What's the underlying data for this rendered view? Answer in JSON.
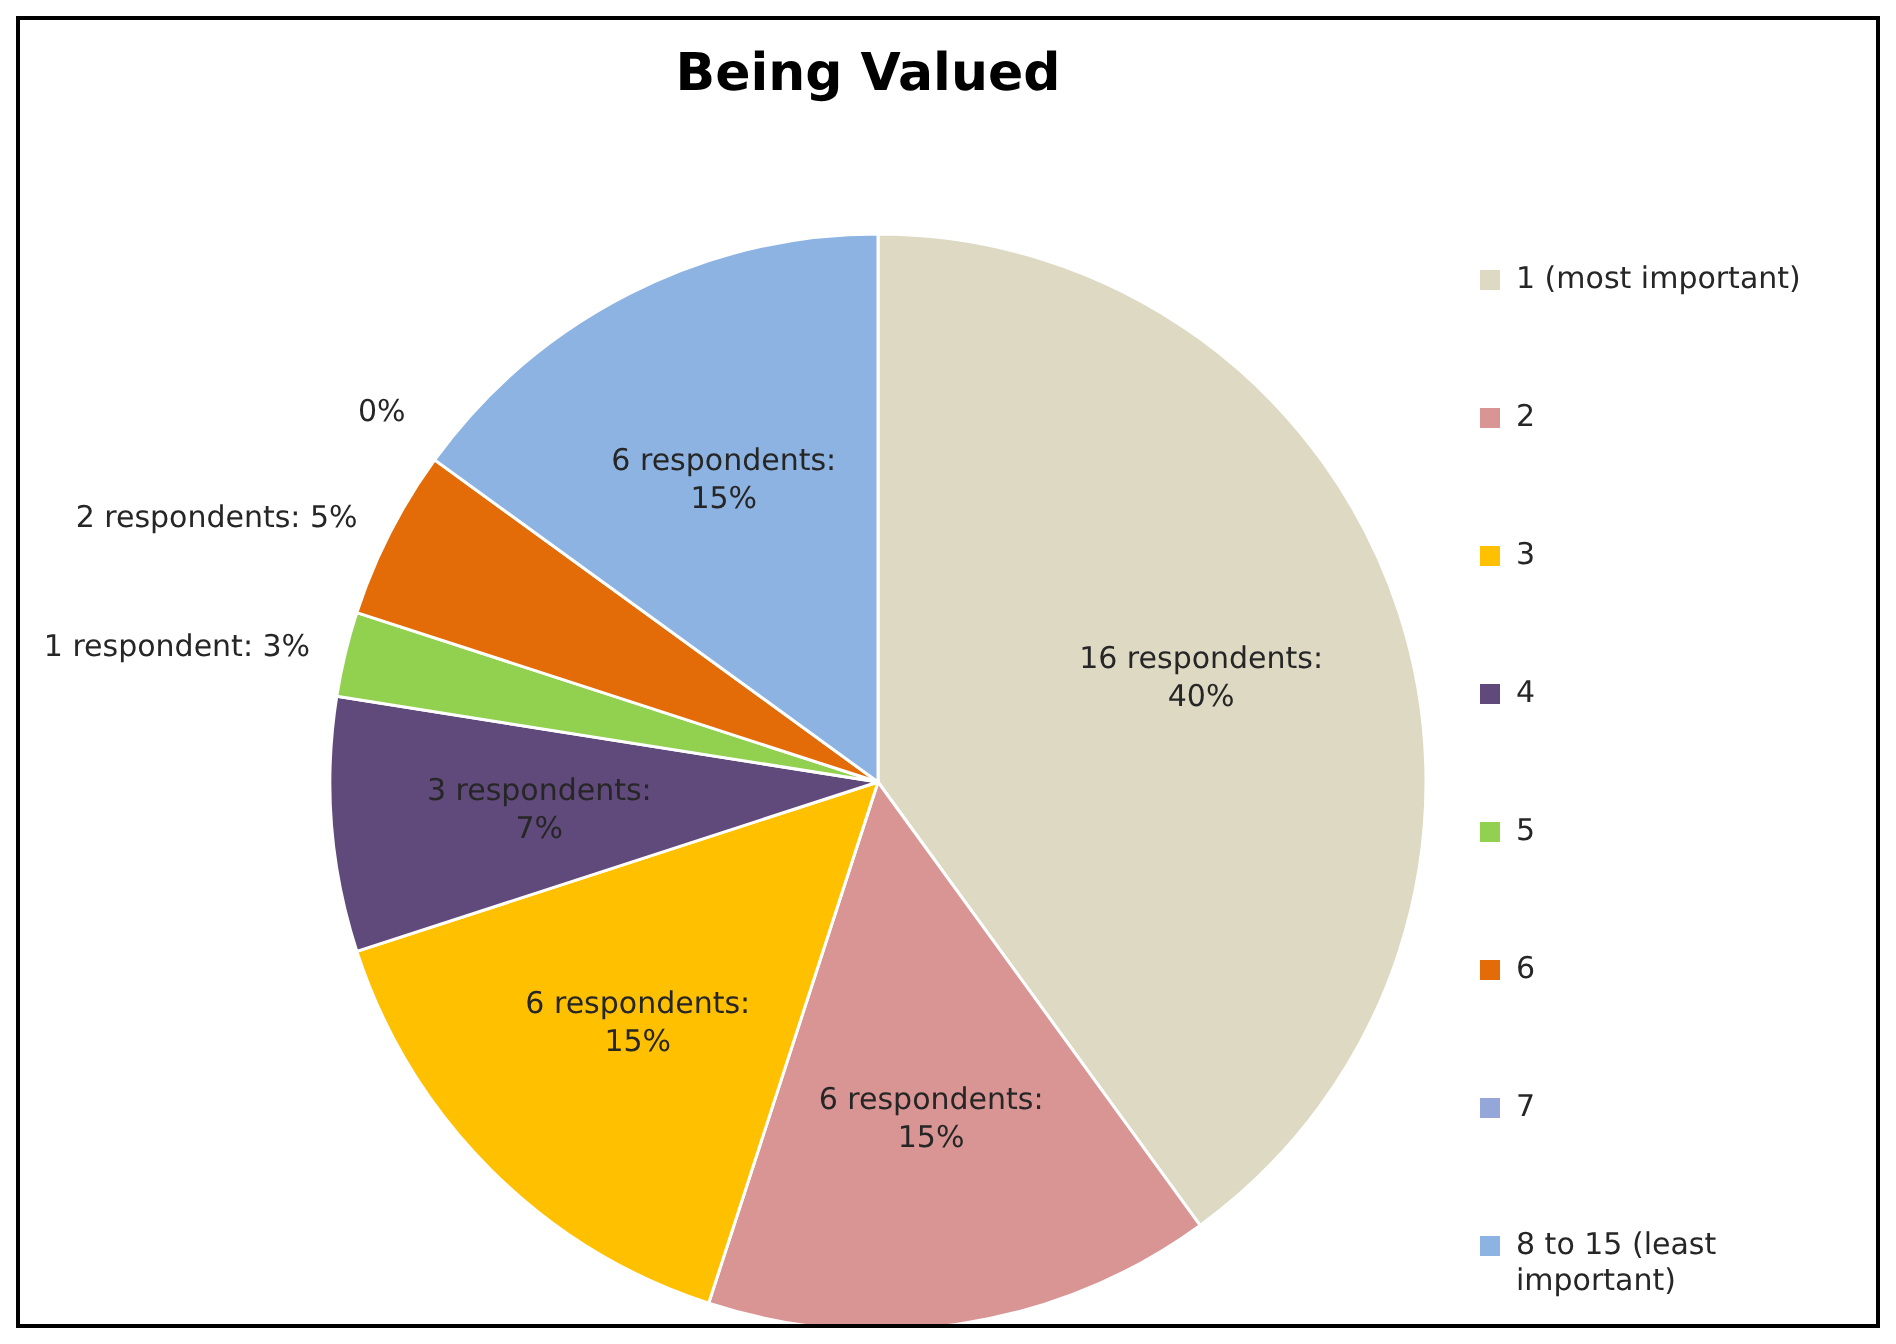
{
  "chart_data": {
    "type": "pie",
    "title": "Being Valued",
    "categories": [
      "1 (most important)",
      "2",
      "3",
      "4",
      "5",
      "6",
      "7",
      "8 to 15 (least important)"
    ],
    "values": [
      16,
      6,
      6,
      3,
      1,
      2,
      0,
      6
    ],
    "colors": [
      "#ddd9c3",
      "#d99594",
      "#ffc000",
      "#604a7b",
      "#92d050",
      "#e36c09",
      "#95a7d9",
      "#8db3e2"
    ],
    "value_labels": [
      "16 respondents: 40%",
      "6 respondents: 15%",
      "6 respondents: 15%",
      "3 respondents: 7%",
      "1 respondent: 3%",
      "2 respondents: 5%",
      "0%",
      "6 respondents: 15%"
    ],
    "legend": "right"
  }
}
